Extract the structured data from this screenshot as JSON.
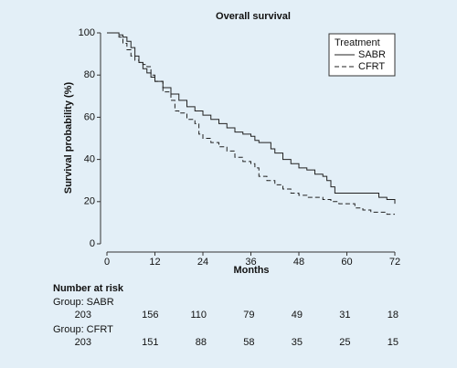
{
  "chart_data": {
    "type": "line",
    "step": true,
    "title": "Overall survival",
    "xlabel": "Months",
    "ylabel": "Survival probability (%)",
    "xlim": [
      0,
      72
    ],
    "xticks": [
      0,
      12,
      24,
      36,
      48,
      60,
      72
    ],
    "ylim": [
      0,
      100
    ],
    "yticks": [
      0,
      20,
      40,
      60,
      80,
      100
    ],
    "legend_title": "Treatment",
    "legend_position": "upper right",
    "series": [
      {
        "name": "SABR",
        "color": "#222222",
        "linestyle": "solid",
        "x": [
          0,
          2,
          3,
          4,
          5,
          6,
          7,
          8,
          9,
          10,
          11,
          12,
          14,
          16,
          18,
          20,
          22,
          24,
          26,
          28,
          30,
          32,
          34,
          36,
          37,
          38,
          40,
          41,
          42,
          44,
          46,
          48,
          50,
          52,
          54,
          55,
          56,
          57,
          60,
          66,
          68,
          70,
          72
        ],
        "values": [
          100,
          100,
          99,
          98,
          96,
          93,
          89,
          86,
          83,
          81,
          79,
          77,
          74,
          71,
          68,
          65,
          63,
          61,
          59,
          57,
          55,
          53,
          52,
          51,
          49,
          48,
          48,
          45,
          43,
          40,
          38,
          36,
          35,
          33,
          32,
          30,
          27,
          24,
          24,
          24,
          22,
          21,
          19
        ]
      },
      {
        "name": "CFRT",
        "color": "#222222",
        "linestyle": "dashed",
        "x": [
          0,
          2,
          3,
          4,
          5,
          6,
          7,
          8,
          9,
          10,
          11,
          12,
          14,
          16,
          17,
          18,
          20,
          22,
          23,
          24,
          26,
          28,
          30,
          32,
          34,
          36,
          37,
          38,
          40,
          42,
          44,
          46,
          48,
          50,
          54,
          56,
          58,
          60,
          62,
          64,
          66,
          68,
          70,
          72
        ],
        "values": [
          100,
          100,
          98,
          95,
          92,
          89,
          87,
          86,
          85,
          84,
          80,
          77,
          72,
          68,
          63,
          62,
          59,
          57,
          52,
          50,
          48,
          46,
          44,
          41,
          39,
          38,
          36,
          32,
          30,
          28,
          26,
          24,
          23,
          22,
          21,
          20,
          19,
          19,
          17,
          16,
          15,
          15,
          14,
          14
        ]
      }
    ],
    "risk_table": {
      "title": "Number at risk",
      "groups": [
        {
          "label": "Group: SABR",
          "counts": [
            203,
            156,
            110,
            79,
            49,
            31,
            18
          ]
        },
        {
          "label": "Group: CFRT",
          "counts": [
            203,
            151,
            88,
            58,
            35,
            25,
            15
          ]
        }
      ]
    }
  }
}
